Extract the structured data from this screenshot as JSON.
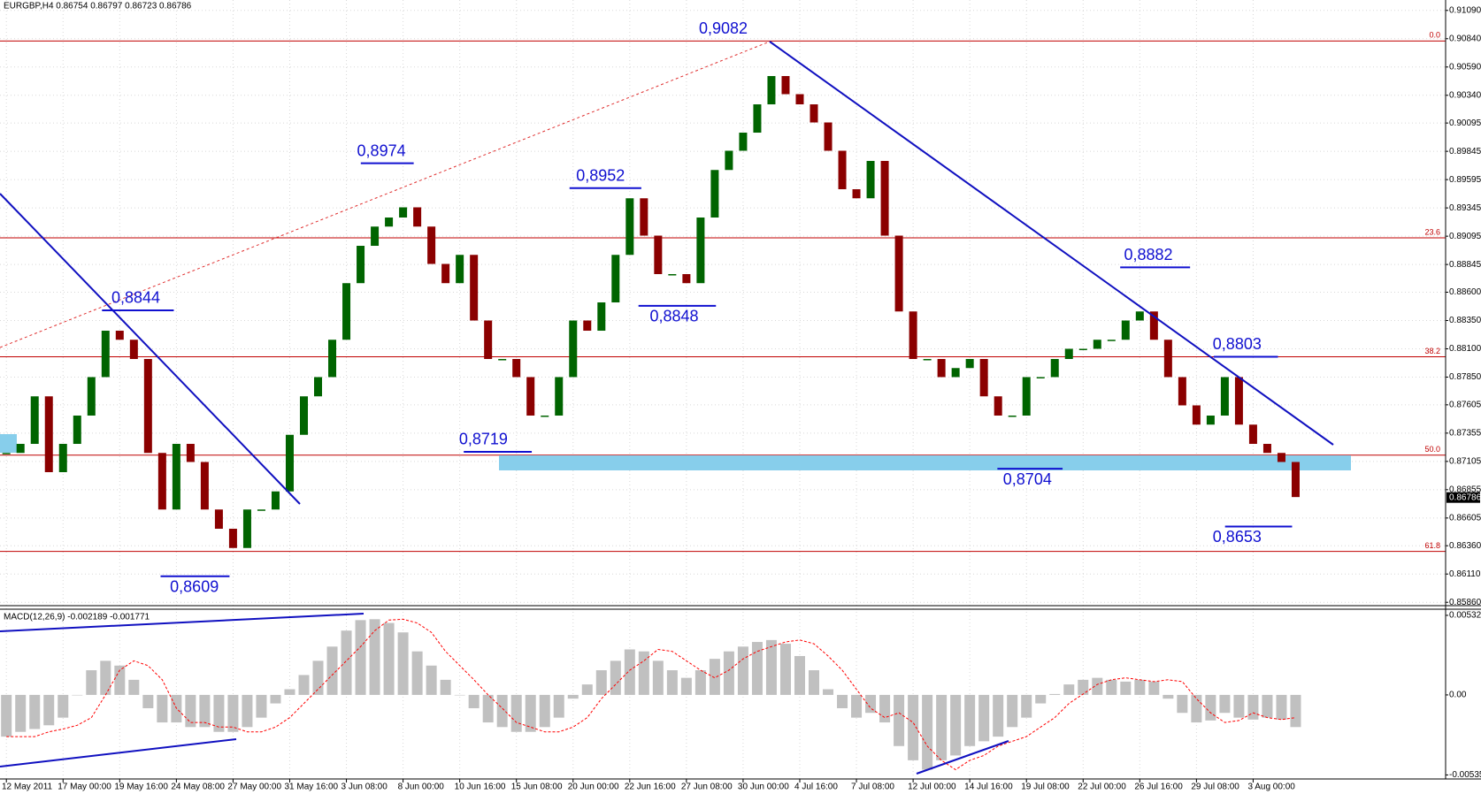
{
  "chart_data": [
    {
      "type": "candle",
      "title": "EURGBP,H4  0.86754 0.86797 0.86723 0.86786",
      "categories": [
        "12 May 2011",
        null,
        null,
        null,
        "17 May 00:00",
        null,
        null,
        null,
        "19 May 16:00",
        null,
        null,
        null,
        "24 May 08:00",
        null,
        null,
        null,
        "27 May 00:00",
        null,
        null,
        null,
        "31 May 16:00",
        null,
        null,
        null,
        "3 Jun 08:00",
        null,
        null,
        null,
        "8 Jun 00:00",
        null,
        null,
        null,
        "10 Jun 16:00",
        null,
        null,
        null,
        "15 Jun 08:00",
        null,
        null,
        null,
        "20 Jun 00:00",
        null,
        null,
        null,
        "22 Jun 16:00",
        null,
        null,
        null,
        "27 Jun 08:00",
        null,
        null,
        null,
        "30 Jun 00:00",
        null,
        null,
        null,
        "4 Jul 16:00",
        null,
        null,
        null,
        "7 Jul 08:00",
        null,
        null,
        null,
        "12 Jul 00:00",
        null,
        null,
        null,
        "14 Jul 16:00",
        null,
        null,
        null,
        "19 Jul 08:00",
        null,
        null,
        null,
        "22 Jul 00:00",
        null,
        null,
        null,
        "26 Jul 16:00",
        null,
        null,
        null,
        "29 Jul 08:00",
        null,
        null,
        null,
        "3 Aug 00:00",
        null,
        null,
        null
      ],
      "values": [
        0.8718,
        0.8726,
        0.8768,
        0.8701,
        0.8726,
        0.8751,
        0.8785,
        0.8826,
        0.8818,
        0.8801,
        0.8718,
        0.8668,
        0.8726,
        0.871,
        0.8668,
        0.8651,
        0.8634,
        0.8668,
        0.8668,
        0.8684,
        0.8734,
        0.8768,
        0.8785,
        0.8818,
        0.8868,
        0.8901,
        0.8918,
        0.8926,
        0.8935,
        0.8918,
        0.8885,
        0.8868,
        0.8893,
        0.8835,
        0.8801,
        0.8801,
        0.8785,
        0.8751,
        0.8751,
        0.8785,
        0.8835,
        0.8826,
        0.8851,
        0.8893,
        0.8943,
        0.891,
        0.8876,
        0.8876,
        0.8868,
        0.8926,
        0.8968,
        0.8985,
        0.9001,
        0.9026,
        0.9051,
        0.9035,
        0.9026,
        0.901,
        0.8985,
        0.8951,
        0.8943,
        0.8976,
        0.891,
        0.8843,
        0.8801,
        0.8801,
        0.8785,
        0.8793,
        0.8801,
        0.8768,
        0.8751,
        0.8751,
        0.8785,
        0.8785,
        0.8801,
        0.881,
        0.881,
        0.8818,
        0.8818,
        0.8835,
        0.8843,
        0.8818,
        0.8785,
        0.876,
        0.8743,
        0.8751,
        0.8785,
        0.8743,
        0.8726,
        0.8718,
        0.871,
        0.8679
      ],
      "up_color": "#006400",
      "down_color": "#8b0000",
      "ylim": [
        0.85846,
        0.91182
      ],
      "yticks": [
        {
          "value": 0.9109,
          "label": "0.91090"
        },
        {
          "value": 0.9084,
          "label": "0.90840"
        },
        {
          "value": 0.9059,
          "label": "0.90590"
        },
        {
          "value": 0.9034,
          "label": "0.90340"
        },
        0.90095,
        0.89845,
        0.89595,
        0.89345,
        0.89095,
        0.88845,
        {
          "value": 0.886,
          "label": "0.88600"
        },
        {
          "value": 0.8835,
          "label": "0.88350"
        },
        {
          "value": 0.881,
          "label": "0.88100"
        },
        {
          "value": 0.8785,
          "label": "0.87850"
        },
        0.87605,
        0.87355,
        0.87105,
        0.86855,
        0.86605,
        {
          "value": 0.8636,
          "label": "0.86360"
        },
        {
          "value": 0.8611,
          "label": "0.86110"
        },
        {
          "value": 0.8586,
          "label": "0.85860"
        }
      ],
      "grid": true,
      "last": 0.86786,
      "levels": [
        {
          "label": "0.0",
          "value": 0.9082
        },
        {
          "label": "23.6",
          "value": 0.8908
        },
        {
          "label": "38.2",
          "value": 0.8803
        },
        {
          "label": "50.0",
          "value": 0.8716
        },
        {
          "label": "61.8",
          "value": 0.8631
        }
      ],
      "level_color": "#c00000",
      "annotations": [
        {
          "label": "0,9082",
          "value": 0.9082
        },
        {
          "label": "0,8974",
          "value": 0.8974
        },
        {
          "label": "0,8952",
          "value": 0.8952
        },
        {
          "label": "0,8844",
          "value": 0.8844
        },
        {
          "label": "0,8848",
          "value": 0.8848
        },
        {
          "label": "0,8719",
          "value": 0.8719
        },
        {
          "label": "0,8609",
          "value": 0.8609
        },
        {
          "label": "0,8882",
          "value": 0.8882
        },
        {
          "label": "0,8803",
          "value": 0.8803
        },
        {
          "label": "0,8704",
          "value": 0.8704
        },
        {
          "label": "0,8653",
          "value": 0.8653
        }
      ],
      "annotation_color": "#1010d0"
    },
    {
      "type": "macd",
      "title": "MACD(12,26,9) -0.002189 -0.001771",
      "values": [
        -0.00279,
        -0.00247,
        -0.00228,
        -0.00203,
        -0.00152,
        0,
        0.00165,
        0.00228,
        0.00196,
        0.00101,
        -0.00089,
        -0.00184,
        -0.00184,
        -0.00215,
        -0.00215,
        -0.00247,
        -0.00247,
        -0.00215,
        -0.00152,
        -0.00057,
        0.00038,
        0.00133,
        0.00228,
        0.00323,
        0.0043,
        0.005,
        0.00506,
        0.00481,
        0.00418,
        0.00291,
        0.00196,
        0.00101,
        0,
        -0.00089,
        -0.00184,
        -0.00215,
        -0.00247,
        -0.00247,
        -0.00215,
        -0.00152,
        -0.00025,
        0.0007,
        0.00165,
        0.00228,
        0.00304,
        0.00291,
        0.00228,
        0.00165,
        0.00114,
        0.00165,
        0.00241,
        0.00291,
        0.00323,
        0.00354,
        0.00367,
        0.00342,
        0.0026,
        0.00165,
        0.00038,
        -0.00089,
        -0.00152,
        -0.0012,
        -0.00184,
        -0.00342,
        -0.00437,
        -0.005,
        -0.00437,
        -0.00405,
        -0.00342,
        -0.0031,
        -0.00279,
        -0.00215,
        -0.00152,
        -0.00057,
        6e-05,
        0.0007,
        0.00101,
        0.00114,
        0.00101,
        0.00089,
        0.00101,
        0.00089,
        -0.00025,
        -0.0012,
        -0.00184,
        -0.00171,
        -0.0012,
        -0.00152,
        -0.00165,
        -0.00152,
        -0.00165,
        -0.00215
      ],
      "signal": [
        -0.00279,
        -0.00279,
        -0.00279,
        -0.00247,
        -0.00228,
        -0.00203,
        -0.00152,
        0,
        0.00165,
        0.00228,
        0.00196,
        0.00101,
        -0.00089,
        -0.00184,
        -0.00184,
        -0.00215,
        -0.00215,
        -0.00247,
        -0.00247,
        -0.00215,
        -0.00152,
        -0.00057,
        0.00038,
        0.00133,
        0.00228,
        0.00323,
        0.0043,
        0.005,
        0.00506,
        0.00481,
        0.00418,
        0.00291,
        0.00196,
        0.00101,
        0,
        -0.00089,
        -0.00184,
        -0.00215,
        -0.00247,
        -0.00247,
        -0.00215,
        -0.00152,
        -0.00025,
        0.0007,
        0.00165,
        0.00228,
        0.00304,
        0.00291,
        0.00228,
        0.00165,
        0.00114,
        0.00165,
        0.00241,
        0.00291,
        0.00323,
        0.00354,
        0.00367,
        0.00342,
        0.0026,
        0.00165,
        0.00038,
        -0.00089,
        -0.00152,
        -0.0012,
        -0.00184,
        -0.00342,
        -0.00437,
        -0.005,
        -0.00437,
        -0.00405,
        -0.00342,
        -0.0031,
        -0.00279,
        -0.00215,
        -0.00152,
        -0.00057,
        6e-05,
        0.0007,
        0.00101,
        0.00114,
        0.00101,
        0.00089,
        0.00101,
        0.00089,
        -0.00025,
        -0.0012,
        -0.00184,
        -0.00171,
        -0.0012,
        -0.00152,
        -0.00165,
        -0.00152
      ],
      "color": "#c0c0c0",
      "signal_color": "#ff0000",
      "ylim": [
        -0.00562,
        0.00573
      ],
      "yticks": [
        {
          "value": 0.00532,
          "label": "0.00532"
        },
        {
          "value": 0,
          "label": "0.00"
        },
        {
          "value": -0.00535,
          "label": "-0.00535"
        }
      ]
    }
  ]
}
